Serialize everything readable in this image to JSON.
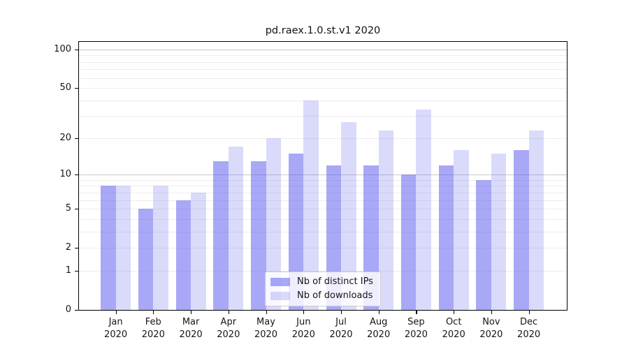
{
  "chart_data": {
    "type": "bar",
    "title": "pd.raex.1.0.st.v1 2020",
    "x_categories_line1": [
      "Jan",
      "Feb",
      "Mar",
      "Apr",
      "May",
      "Jun",
      "Jul",
      "Aug",
      "Sep",
      "Oct",
      "Nov",
      "Dec"
    ],
    "x_categories_line2": "2020",
    "series": [
      {
        "name": "Nb of distinct IPs",
        "color": "rgba(100,100,240,0.56)",
        "values": [
          8,
          5,
          6,
          13,
          13,
          15,
          12,
          12,
          10,
          12,
          9,
          16
        ]
      },
      {
        "name": "Nb of downloads",
        "color": "rgba(100,100,240,0.24)",
        "values": [
          8,
          8,
          7,
          17,
          20,
          40,
          27,
          23,
          34,
          16,
          15,
          23
        ]
      }
    ],
    "y_scale": "log1p",
    "y_max": 114.4,
    "ylim": [
      0,
      114.4
    ],
    "y_ticks": [
      0,
      1,
      2,
      5,
      10,
      20,
      50,
      100
    ],
    "grid": {
      "enabled": true,
      "minor_lines": [
        1,
        2,
        3,
        4,
        5,
        6,
        7,
        8,
        9,
        20,
        30,
        40,
        50,
        60,
        70,
        80,
        90
      ],
      "major_lines": [
        10,
        100
      ]
    },
    "legend_position": "lower center"
  },
  "colors": {
    "bar_ips": "rgba(100,100,240,0.56)",
    "bar_downloads": "rgba(100,100,240,0.24)",
    "grid_minor": "#ededed",
    "grid_major": "#c9c9c9",
    "axis": "#000000",
    "text": "#151515",
    "legend_border": "#cccccc",
    "legend_bg": "rgba(255,255,255,0.8)"
  }
}
